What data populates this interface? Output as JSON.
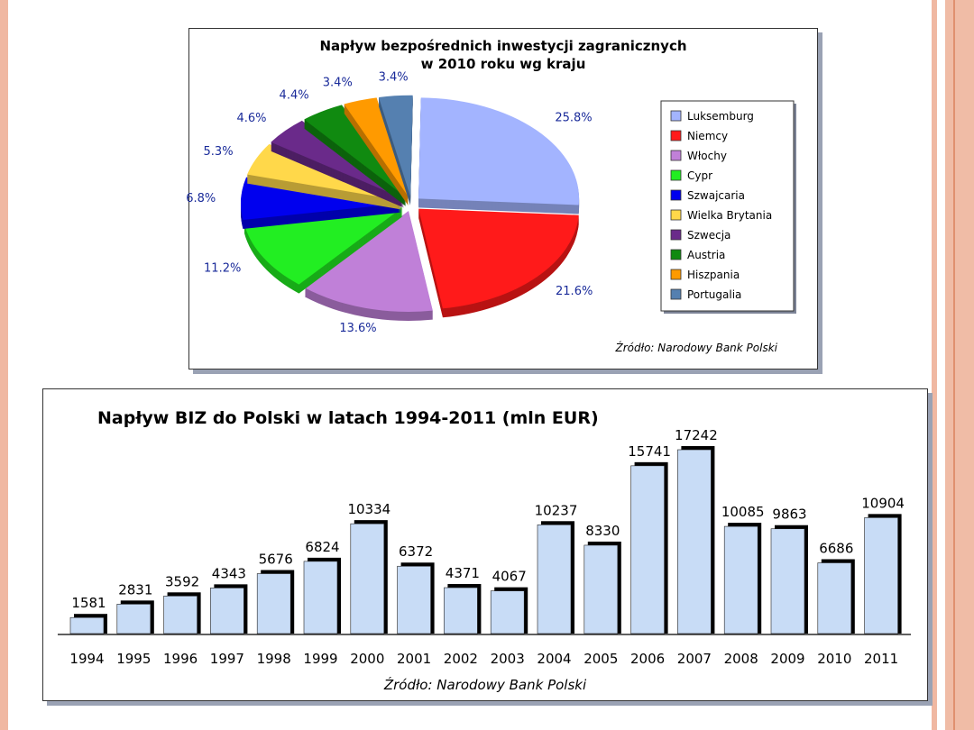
{
  "chart_data": [
    {
      "type": "pie",
      "title": "Napływ bezpośrednich inwestycji zagranicznych\nw 2010 roku wg kraju",
      "labels": [
        "Luksemburg",
        "Niemcy",
        "Włochy",
        "Cypr",
        "Szwajcaria",
        "Wielka Brytania",
        "Szwecja",
        "Austria",
        "Hiszpania",
        "Portugalia"
      ],
      "values": [
        25.8,
        21.6,
        13.6,
        11.2,
        6.8,
        5.3,
        4.6,
        4.4,
        3.4,
        3.4
      ],
      "value_labels": [
        "25.8%",
        "21.6%",
        "13.6%",
        "11.2%",
        "6.8%",
        "5.3%",
        "4.6%",
        "4.4%",
        "3.4%",
        "3.4%"
      ],
      "colors": [
        "#a3b4ff",
        "#ff1a1a",
        "#c080d8",
        "#22ee22",
        "#0000ee",
        "#ffd84a",
        "#6a2a8a",
        "#108a10",
        "#ff9a00",
        "#5580b0"
      ],
      "legend": "right",
      "source": "Źródło: Narodowy Bank Polski"
    },
    {
      "type": "bar",
      "title": "Napływ BIZ do Polski w latach 1994-2011 (mln EUR)",
      "categories": [
        "1994",
        "1995",
        "1996",
        "1997",
        "1998",
        "1999",
        "2000",
        "2001",
        "2002",
        "2003",
        "2004",
        "2005",
        "2006",
        "2007",
        "2008",
        "2009",
        "2010",
        "2011"
      ],
      "values": [
        1581,
        2831,
        3592,
        4343,
        5676,
        6824,
        10334,
        6372,
        4371,
        4067,
        10237,
        8330,
        15741,
        17242,
        10085,
        9863,
        6686,
        10904
      ],
      "ylim": [
        0,
        17242
      ],
      "bar_color": "#c8dcf6",
      "source": "Źródło: Narodowy Bank Polski"
    }
  ]
}
